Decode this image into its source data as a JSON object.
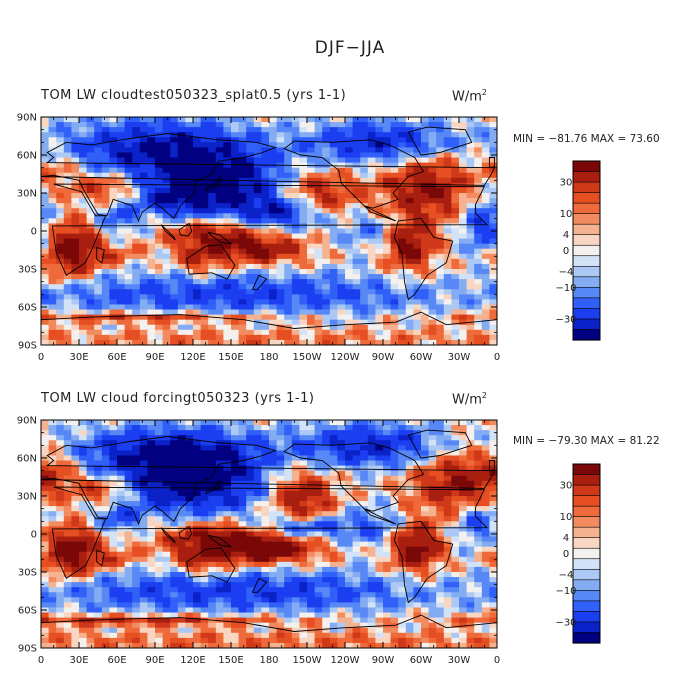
{
  "title": "DJF−JJA",
  "colors": {
    "levels": [
      "#000080",
      "#0a22c8",
      "#1a3ef0",
      "#3060f8",
      "#5888f5",
      "#84acf2",
      "#acc8f4",
      "#d2e3f8",
      "#f4f0ee",
      "#f8d6c2",
      "#f5b291",
      "#f28c60",
      "#ee6a3a",
      "#e54f22",
      "#d0381a",
      "#a81f10",
      "#7a0808"
    ],
    "coast": "#000000"
  },
  "colorbar_labels": [
    "30",
    "10",
    "4",
    "0",
    "−4",
    "−10",
    "−30"
  ],
  "lat_labels": [
    "90N",
    "60N",
    "30N",
    "0",
    "30S",
    "60S",
    "90S"
  ],
  "lon_labels": [
    "0",
    "30E",
    "60E",
    "90E",
    "120E",
    "150E",
    "180",
    "150W",
    "120W",
    "90W",
    "60W",
    "30W",
    "0"
  ],
  "panels": [
    {
      "left_title": "TOM LW cloudtest050323_splat0.5 (yrs 1-1)",
      "units_base": "W/m",
      "units_exp": "2",
      "minmax": "MIN = −81.76  MAX =  73.60"
    },
    {
      "left_title": "TOM LW cloud forcingt050323 (yrs 1-1)",
      "units_base": "W/m",
      "units_exp": "2",
      "minmax": "MIN = −79.30  MAX =  81.22"
    }
  ],
  "chart_data": [
    {
      "type": "heatmap",
      "title": "TOM LW cloudtest050323_splat0.5 (yrs 1-1)",
      "subtitle": "DJF−JJA",
      "units": "W/m^2",
      "min": -81.76,
      "max": 73.6,
      "x_range": [
        0,
        360
      ],
      "y_range": [
        -90,
        90
      ],
      "colorbar_levels": [
        -40,
        -30,
        -20,
        -15,
        -10,
        -6,
        -4,
        -2,
        0,
        2,
        4,
        6,
        10,
        15,
        20,
        30,
        40
      ],
      "field_blobs": [
        {
          "lon": 25,
          "lat": -15,
          "amp": 38,
          "sx": 15,
          "sy": 15
        },
        {
          "lon": 50,
          "lat": 35,
          "amp": 22,
          "sx": 18,
          "sy": 8
        },
        {
          "lon": 10,
          "lat": 50,
          "amp": 14,
          "sx": 15,
          "sy": 10
        },
        {
          "lon": 135,
          "lat": -3,
          "amp": 34,
          "sx": 25,
          "sy": 10
        },
        {
          "lon": 175,
          "lat": -15,
          "amp": 28,
          "sx": 25,
          "sy": 8
        },
        {
          "lon": 125,
          "lat": -25,
          "amp": 18,
          "sx": 12,
          "sy": 8
        },
        {
          "lon": 290,
          "lat": -10,
          "amp": 40,
          "sx": 14,
          "sy": 14
        },
        {
          "lon": 305,
          "lat": 35,
          "amp": 30,
          "sx": 25,
          "sy": 20
        },
        {
          "lon": 220,
          "lat": 30,
          "amp": 24,
          "sx": 22,
          "sy": 12
        },
        {
          "lon": 80,
          "lat": -68,
          "amp": 22,
          "sx": 80,
          "sy": 3
        },
        {
          "lon": 60,
          "lat": -20,
          "amp": 12,
          "sx": 12,
          "sy": 6
        },
        {
          "lon": 140,
          "lat": 35,
          "amp": -48,
          "sx": 35,
          "sy": 20
        },
        {
          "lon": 90,
          "lat": 65,
          "amp": -38,
          "sx": 50,
          "sy": 16
        },
        {
          "lon": 270,
          "lat": 70,
          "amp": -35,
          "sx": 40,
          "sy": 12
        },
        {
          "lon": 350,
          "lat": 5,
          "amp": -30,
          "sx": 12,
          "sy": 15
        },
        {
          "lon": 150,
          "lat": -50,
          "amp": -25,
          "sx": 120,
          "sy": 12
        },
        {
          "lon": 270,
          "lat": 0,
          "amp": -18,
          "sx": 25,
          "sy": 12
        },
        {
          "lon": 190,
          "lat": 15,
          "amp": -28,
          "sx": 20,
          "sy": 8
        },
        {
          "lon": 60,
          "lat": 10,
          "amp": -20,
          "sx": 12,
          "sy": 8
        },
        {
          "lon": 100,
          "lat": 25,
          "amp": -22,
          "sx": 15,
          "sy": 8
        },
        {
          "lon": 180,
          "lat": -85,
          "amp": 8,
          "sx": 200,
          "sy": 6
        }
      ]
    },
    {
      "type": "heatmap",
      "title": "TOM LW cloud forcingt050323 (yrs 1-1)",
      "subtitle": "DJF−JJA",
      "units": "W/m^2",
      "min": -79.3,
      "max": 81.22,
      "x_range": [
        0,
        360
      ],
      "y_range": [
        -90,
        90
      ],
      "colorbar_levels": [
        -40,
        -30,
        -20,
        -15,
        -10,
        -6,
        -4,
        -2,
        0,
        2,
        4,
        6,
        10,
        15,
        20,
        30,
        40
      ],
      "field_blobs": [
        {
          "lon": 25,
          "lat": -15,
          "amp": 40,
          "sx": 15,
          "sy": 14
        },
        {
          "lon": 50,
          "lat": 35,
          "amp": 24,
          "sx": 18,
          "sy": 8
        },
        {
          "lon": 10,
          "lat": 50,
          "amp": 16,
          "sx": 15,
          "sy": 10
        },
        {
          "lon": 140,
          "lat": -5,
          "amp": 36,
          "sx": 30,
          "sy": 10
        },
        {
          "lon": 180,
          "lat": -12,
          "amp": 32,
          "sx": 30,
          "sy": 8
        },
        {
          "lon": 125,
          "lat": -25,
          "amp": 18,
          "sx": 12,
          "sy": 8
        },
        {
          "lon": 295,
          "lat": -10,
          "amp": 42,
          "sx": 14,
          "sy": 14
        },
        {
          "lon": 330,
          "lat": 40,
          "amp": 30,
          "sx": 25,
          "sy": 18
        },
        {
          "lon": 205,
          "lat": 30,
          "amp": 32,
          "sx": 18,
          "sy": 14
        },
        {
          "lon": 80,
          "lat": -68,
          "amp": 24,
          "sx": 80,
          "sy": 3
        },
        {
          "lon": 60,
          "lat": -20,
          "amp": 14,
          "sx": 12,
          "sy": 6
        },
        {
          "lon": 120,
          "lat": 40,
          "amp": -46,
          "sx": 40,
          "sy": 18
        },
        {
          "lon": 100,
          "lat": 65,
          "amp": -36,
          "sx": 50,
          "sy": 14
        },
        {
          "lon": 260,
          "lat": 70,
          "amp": -34,
          "sx": 40,
          "sy": 12
        },
        {
          "lon": 345,
          "lat": 10,
          "amp": -26,
          "sx": 12,
          "sy": 12
        },
        {
          "lon": 150,
          "lat": -45,
          "amp": -26,
          "sx": 120,
          "sy": 12
        },
        {
          "lon": 265,
          "lat": 5,
          "amp": -18,
          "sx": 25,
          "sy": 12
        },
        {
          "lon": 205,
          "lat": 5,
          "amp": -26,
          "sx": 25,
          "sy": 6
        },
        {
          "lon": 60,
          "lat": 12,
          "amp": -20,
          "sx": 12,
          "sy": 8
        },
        {
          "lon": 180,
          "lat": -85,
          "amp": 10,
          "sx": 200,
          "sy": 6
        }
      ]
    }
  ]
}
